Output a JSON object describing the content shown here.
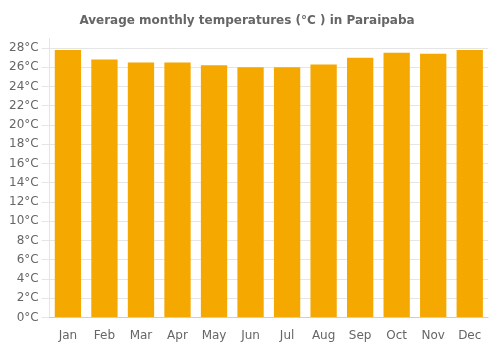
{
  "chart_data": {
    "type": "bar",
    "title": "Average monthly temperatures (°C ) in Paraipaba",
    "categories": [
      "Jan",
      "Feb",
      "Mar",
      "Apr",
      "May",
      "Jun",
      "Jul",
      "Aug",
      "Sep",
      "Oct",
      "Nov",
      "Dec"
    ],
    "values": [
      27.8,
      26.8,
      26.5,
      26.5,
      26.2,
      26.0,
      26.0,
      26.3,
      27.0,
      27.5,
      27.4,
      27.8
    ],
    "color": "#F5A800",
    "ylim": [
      0,
      29
    ],
    "yticks": [
      {
        "value": 0,
        "label": "0°C"
      },
      {
        "value": 2,
        "label": "2°C"
      },
      {
        "value": 4,
        "label": "4°C"
      },
      {
        "value": 6,
        "label": "6°C"
      },
      {
        "value": 8,
        "label": "8°C"
      },
      {
        "value": 10,
        "label": "10°C"
      },
      {
        "value": 12,
        "label": "12°C"
      },
      {
        "value": 14,
        "label": "14°C"
      },
      {
        "value": 16,
        "label": "16°C"
      },
      {
        "value": 18,
        "label": "18°C"
      },
      {
        "value": 20,
        "label": "20°C"
      },
      {
        "value": 22,
        "label": "22°C"
      },
      {
        "value": 24,
        "label": "24°C"
      },
      {
        "value": 26,
        "label": "26°C"
      },
      {
        "value": 28,
        "label": "28°C"
      }
    ],
    "grid": true
  }
}
